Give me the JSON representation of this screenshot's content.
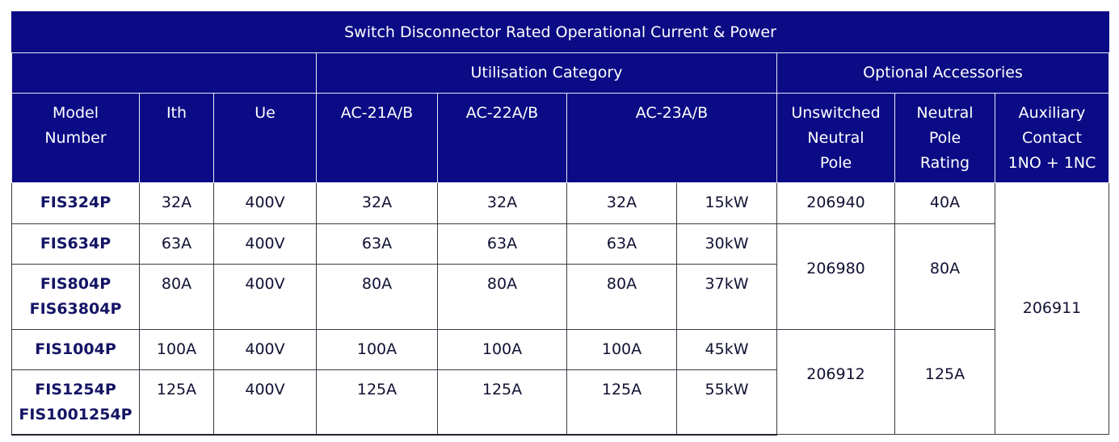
{
  "title": "Switch Disconnector Rated Operational Current  & Power",
  "group_headers": {
    "utilisation": "Utilisation Category",
    "accessories": "Optional Accessories"
  },
  "column_headers": {
    "model": [
      "Model",
      "Number"
    ],
    "ith": "Ith",
    "ue": "Ue",
    "ac21": "AC-21A/B",
    "ac22": "AC-22A/B",
    "ac23": "AC-23A/B",
    "neutral_pole": [
      "Unswitched",
      "Neutral",
      "Pole"
    ],
    "neutral_rating": [
      "Neutral",
      "Pole",
      "Rating"
    ],
    "auxiliary": [
      "Auxiliary",
      "Contact",
      "1NO + 1NC"
    ]
  },
  "rows": [
    {
      "model": [
        "FIS324P"
      ],
      "ith": "32A",
      "ue": "400V",
      "ac21": "32A",
      "ac22": "32A",
      "ac23_current": "32A",
      "ac23_power": "15kW"
    },
    {
      "model": [
        "FIS634P"
      ],
      "ith": "63A",
      "ue": "400V",
      "ac21": "63A",
      "ac22": "63A",
      "ac23_current": "63A",
      "ac23_power": "30kW"
    },
    {
      "model": [
        "FIS804P",
        "FIS63804P"
      ],
      "ith": "80A",
      "ue": "400V",
      "ac21": "80A",
      "ac22": "80A",
      "ac23_current": "80A",
      "ac23_power": "37kW"
    },
    {
      "model": [
        "FIS1004P"
      ],
      "ith": "100A",
      "ue": "400V",
      "ac21": "100A",
      "ac22": "100A",
      "ac23_current": "100A",
      "ac23_power": "45kW"
    },
    {
      "model": [
        "FIS1254P",
        "FIS1001254P"
      ],
      "ith": "125A",
      "ue": "400V",
      "ac21": "125A",
      "ac22": "125A",
      "ac23_current": "125A",
      "ac23_power": "55kW"
    }
  ],
  "accessories": {
    "neutral_pole": [
      "206940",
      "206980",
      "206912"
    ],
    "neutral_rating": [
      "40A",
      "80A",
      "125A"
    ],
    "auxiliary": "206911"
  }
}
